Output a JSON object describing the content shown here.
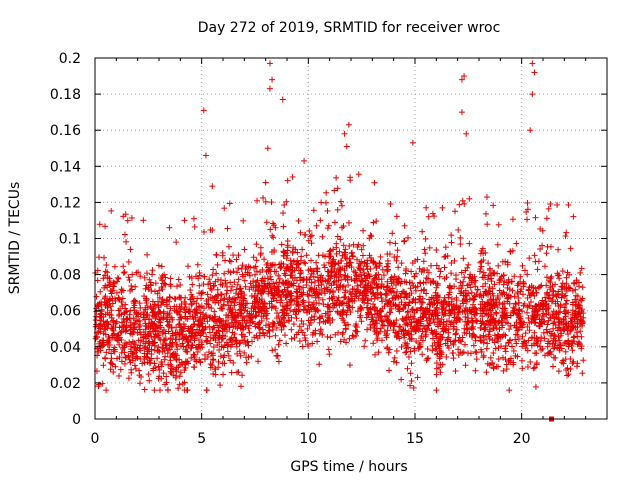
{
  "chart_data": {
    "type": "scatter",
    "title": "Day 272 of 2019, SRMTID for receiver wroc",
    "xlabel": "GPS time / hours",
    "ylabel": "SRMTID / TECUs",
    "xlim": [
      0,
      24
    ],
    "ylim": [
      0,
      0.2
    ],
    "xticks": [
      0,
      5,
      10,
      15,
      20
    ],
    "xtick_labels": [
      "0",
      "5",
      "10",
      "15",
      "20"
    ],
    "yticks": [
      0,
      0.02,
      0.04,
      0.06,
      0.08,
      0.1,
      0.12,
      0.14,
      0.16,
      0.18,
      0.2
    ],
    "ytick_labels": [
      "0",
      "0.02",
      "0.04",
      "0.06",
      "0.08",
      "0.1",
      "0.12",
      "0.14",
      "0.16",
      "0.18",
      "0.2"
    ],
    "grid": true,
    "marker": "+",
    "color": "#e60000",
    "point_count": 3600,
    "series": [
      {
        "name": "SRMTID",
        "baseline_hourly": [
          {
            "x": 0,
            "y": 0.055
          },
          {
            "x": 1,
            "y": 0.052
          },
          {
            "x": 2,
            "y": 0.05
          },
          {
            "x": 3,
            "y": 0.048
          },
          {
            "x": 4,
            "y": 0.047
          },
          {
            "x": 5,
            "y": 0.052
          },
          {
            "x": 6,
            "y": 0.055
          },
          {
            "x": 7,
            "y": 0.058
          },
          {
            "x": 8,
            "y": 0.068
          },
          {
            "x": 9,
            "y": 0.07
          },
          {
            "x": 10,
            "y": 0.07
          },
          {
            "x": 11,
            "y": 0.072
          },
          {
            "x": 12,
            "y": 0.072
          },
          {
            "x": 13,
            "y": 0.07
          },
          {
            "x": 14,
            "y": 0.062
          },
          {
            "x": 15,
            "y": 0.058
          },
          {
            "x": 16,
            "y": 0.055
          },
          {
            "x": 17,
            "y": 0.06
          },
          {
            "x": 18,
            "y": 0.06
          },
          {
            "x": 19,
            "y": 0.058
          },
          {
            "x": 20,
            "y": 0.056
          },
          {
            "x": 21,
            "y": 0.055
          },
          {
            "x": 22,
            "y": 0.055
          },
          {
            "x": 22.9,
            "y": 0.056
          }
        ],
        "peaks": [
          {
            "x": 5.1,
            "y": 0.171
          },
          {
            "x": 5.2,
            "y": 0.146
          },
          {
            "x": 5.5,
            "y": 0.129
          },
          {
            "x": 8.0,
            "y": 0.131
          },
          {
            "x": 8.1,
            "y": 0.15
          },
          {
            "x": 8.2,
            "y": 0.197
          },
          {
            "x": 8.2,
            "y": 0.183
          },
          {
            "x": 8.3,
            "y": 0.188
          },
          {
            "x": 8.8,
            "y": 0.177
          },
          {
            "x": 9.8,
            "y": 0.143
          },
          {
            "x": 11.7,
            "y": 0.158
          },
          {
            "x": 11.9,
            "y": 0.163
          },
          {
            "x": 11.8,
            "y": 0.151
          },
          {
            "x": 14.9,
            "y": 0.153
          },
          {
            "x": 17.3,
            "y": 0.19
          },
          {
            "x": 17.2,
            "y": 0.188
          },
          {
            "x": 17.2,
            "y": 0.17
          },
          {
            "x": 17.4,
            "y": 0.158
          },
          {
            "x": 20.5,
            "y": 0.197
          },
          {
            "x": 20.6,
            "y": 0.192
          },
          {
            "x": 20.5,
            "y": 0.18
          },
          {
            "x": 20.4,
            "y": 0.16
          }
        ],
        "range_y": [
          0.016,
          0.197
        ],
        "extra_marker": {
          "x": 21.4,
          "y": 0.0
        }
      }
    ]
  }
}
